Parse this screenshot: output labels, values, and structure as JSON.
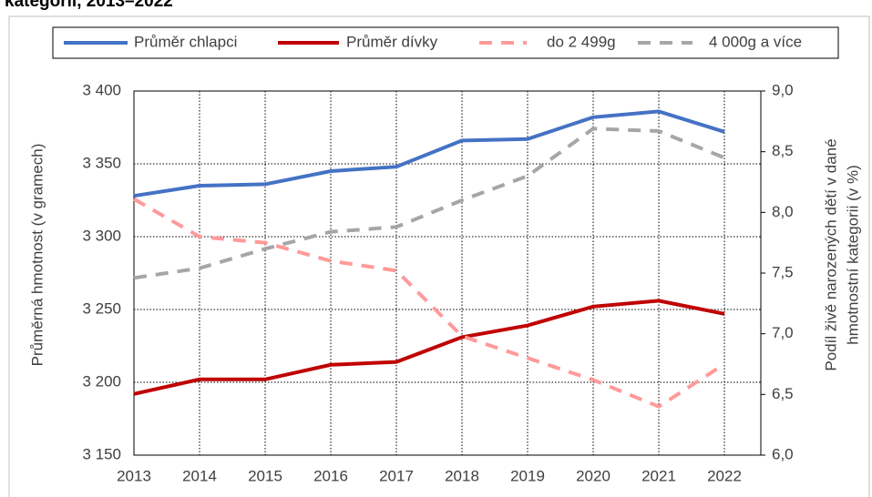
{
  "chart_data": {
    "type": "line",
    "title": "kategorií, 2013–2022",
    "y_label": "Průměrná hmotnost (v gramech)",
    "y2_label": [
      "Podíl živě narozených dětí v dané",
      "hmotnostní kategorii (v %)"
    ],
    "categories": [
      "2013",
      "2014",
      "2015",
      "2016",
      "2017",
      "2018",
      "2019",
      "2020",
      "2021",
      "2022"
    ],
    "series": [
      {
        "name": "Průměr chlapci",
        "color": "#4472c4",
        "line_style": "solid",
        "values": [
          3328,
          3335,
          3336,
          3345,
          3348,
          3366,
          3367,
          3382,
          3386,
          3372
        ]
      },
      {
        "name": "Průměr dívky",
        "color": "#c00000",
        "line_style": "solid",
        "values": [
          3192,
          3202,
          3202,
          3212,
          3214,
          3231,
          3239,
          3252,
          3256,
          3247
        ]
      },
      {
        "name": "do 2 499g",
        "color": "#ff9a9a",
        "line_style": "dashed",
        "axis": "y2",
        "values": [
          8.11,
          7.8,
          7.75,
          7.6,
          7.52,
          6.98,
          6.8,
          6.62,
          6.4,
          6.75
        ]
      },
      {
        "name": "4 000g a více",
        "color": "#a6a6a6",
        "line_style": "dashed",
        "axis": "y2",
        "values": [
          7.46,
          7.54,
          7.7,
          7.84,
          7.88,
          8.1,
          8.3,
          8.69,
          8.67,
          8.45
        ]
      }
    ],
    "ylim": [
      3150,
      3400
    ],
    "yticks": [
      {
        "value": 3150,
        "label": "3 150"
      },
      {
        "value": 3200,
        "label": "3 200"
      },
      {
        "value": 3250,
        "label": "3 250"
      },
      {
        "value": 3300,
        "label": "3 300"
      },
      {
        "value": 3350,
        "label": "3 350"
      },
      {
        "value": 3400,
        "label": "3 400"
      }
    ],
    "y2lim": [
      6,
      9
    ],
    "y2ticks": [
      {
        "value": 6,
        "label": "6,0"
      },
      {
        "value": 6.5,
        "label": "6,5"
      },
      {
        "value": 7,
        "label": "7,0"
      },
      {
        "value": 7.5,
        "label": "7,5"
      },
      {
        "value": 8,
        "label": "8,0"
      },
      {
        "value": 8.5,
        "label": "8,5"
      },
      {
        "value": 9,
        "label": "9,0"
      }
    ],
    "grid": true,
    "legend": "top"
  }
}
